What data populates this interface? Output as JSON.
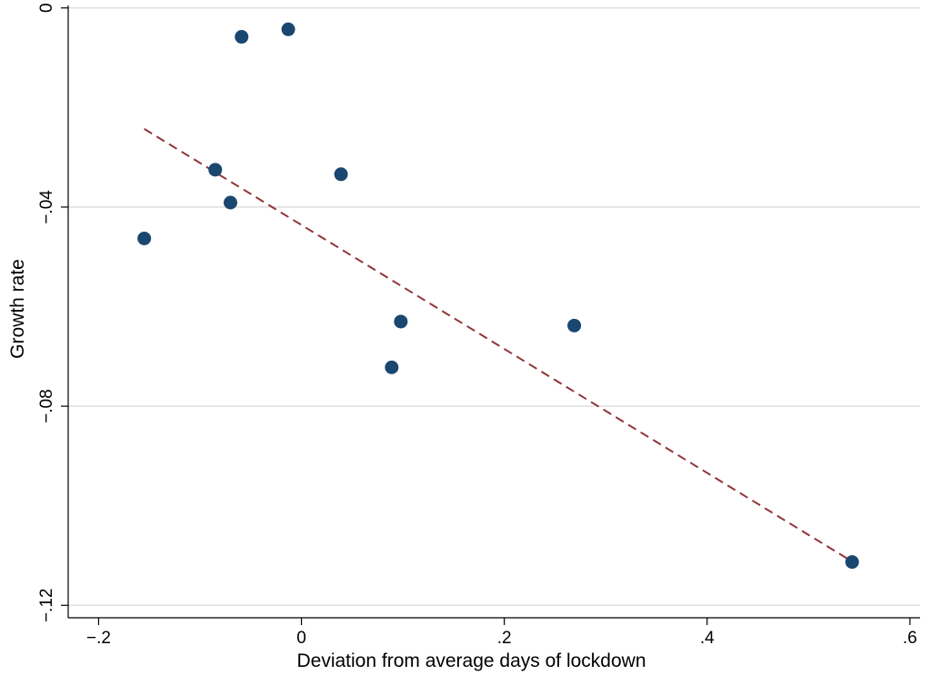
{
  "chart_data": {
    "type": "scatter",
    "xlabel": "Deviation from average days of lockdown",
    "ylabel": "Growth rate",
    "xlim": [
      -0.23,
      0.61
    ],
    "ylim": [
      -0.1225,
      0.0005
    ],
    "x_ticks": [
      -0.2,
      0,
      0.2,
      0.4,
      0.6
    ],
    "x_tick_labels": [
      "−.2",
      "0",
      ".2",
      ".4",
      ".6"
    ],
    "y_ticks": [
      0,
      -0.04,
      -0.08,
      -0.12
    ],
    "y_tick_labels": [
      "0",
      "−.04",
      "−.08",
      "−.12"
    ],
    "grid": "horizontal",
    "legend": "none",
    "series": [
      {
        "kind": "points",
        "color": "#1a476f",
        "points": [
          {
            "x": -0.155,
            "y": -0.0463
          },
          {
            "x": -0.085,
            "y": -0.0325
          },
          {
            "x": -0.07,
            "y": -0.0391
          },
          {
            "x": -0.059,
            "y": -0.0058
          },
          {
            "x": -0.013,
            "y": -0.0043
          },
          {
            "x": 0.039,
            "y": -0.0334
          },
          {
            "x": 0.089,
            "y": -0.0722
          },
          {
            "x": 0.098,
            "y": -0.063
          },
          {
            "x": 0.269,
            "y": -0.0638
          },
          {
            "x": 0.543,
            "y": -0.1113
          }
        ]
      },
      {
        "kind": "fitted-line",
        "style": "dashed",
        "color": "#90353b",
        "points": [
          {
            "x": -0.155,
            "y": -0.0243
          },
          {
            "x": 0.543,
            "y": -0.1112
          }
        ]
      }
    ]
  }
}
